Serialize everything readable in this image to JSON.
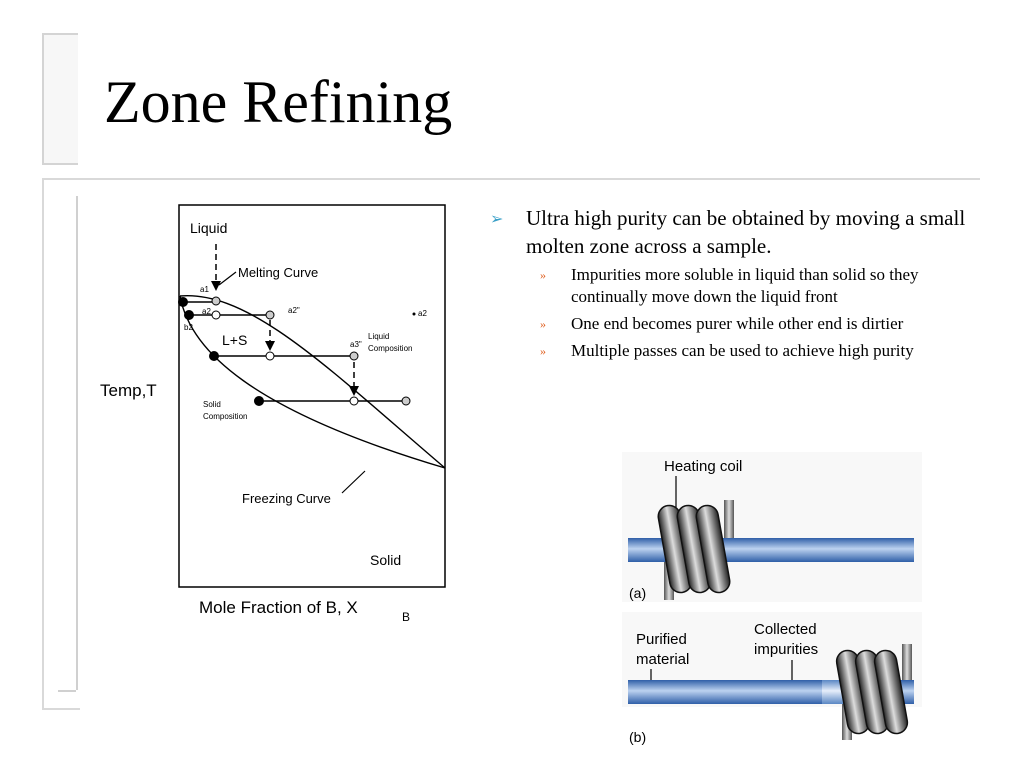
{
  "slide": {
    "title": "Zone Refining",
    "bullets": [
      {
        "text": "Ultra high purity can be obtained by moving a small molten zone across a sample.",
        "sub": [
          "Impurities more soluble in liquid than solid so they continually move down the liquid front",
          "One end becomes purer while other end is dirtier",
          "Multiple passes can be used to achieve high purity"
        ]
      }
    ],
    "bullet_marker": "➢",
    "sub_marker": "»"
  },
  "phase_diagram": {
    "liquid": "Liquid",
    "melting_curve": "Melting Curve",
    "a1": "a1",
    "a2": "a2",
    "a2pp": "a2\"",
    "a2_right": "a2",
    "b2": "b2",
    "ls": "L+S",
    "a3pp": "a3\"",
    "liquid_comp_1": "Liquid",
    "liquid_comp_2": "Composition",
    "solid_comp_1": "Solid",
    "solid_comp_2": "Composition",
    "temp": "Temp,T",
    "freezing_curve": "Freezing Curve",
    "solid": "Solid",
    "xlabel": "Mole Fraction of B, X",
    "xlabel_sub": "B"
  },
  "zone_figure": {
    "heating_coil": "Heating coil",
    "label_a": "(a)",
    "purified_1": "Purified",
    "purified_2": "material",
    "collected_1": "Collected",
    "collected_2": "impurities",
    "label_b": "(b)"
  },
  "colors": {
    "bullet": "#3aa0c8",
    "sub_bullet": "#e06020",
    "rod": "#4a7ec8"
  }
}
